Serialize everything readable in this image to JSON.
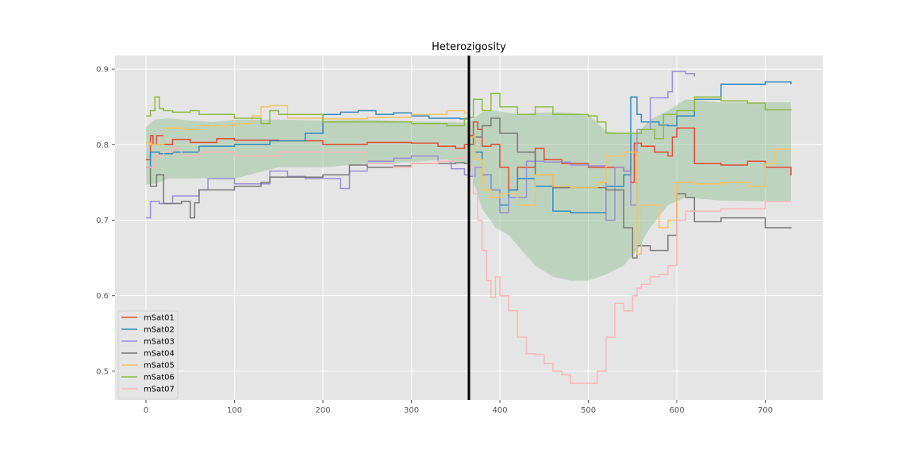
{
  "chart_data": {
    "type": "line",
    "title": "Heterozigosity",
    "xlabel": "",
    "ylabel": "",
    "xlim": [
      -35,
      765
    ],
    "ylim": [
      0.462,
      0.918
    ],
    "xticks": [
      0,
      100,
      200,
      300,
      400,
      500,
      600,
      700
    ],
    "yticks": [
      0.5,
      0.6,
      0.7,
      0.8,
      0.9
    ],
    "grid": true,
    "legend_position": "lower-left",
    "vline": {
      "x": 365,
      "color": "#000000"
    },
    "band": {
      "color": "#8fbc8f",
      "x": [
        0,
        10,
        25,
        50,
        75,
        100,
        150,
        200,
        250,
        300,
        340,
        364,
        380,
        395,
        410,
        425,
        440,
        460,
        480,
        500,
        520,
        540,
        555,
        570,
        590,
        610,
        650,
        700,
        729
      ],
      "upper": [
        0.823,
        0.833,
        0.835,
        0.832,
        0.83,
        0.833,
        0.833,
        0.832,
        0.833,
        0.831,
        0.83,
        0.829,
        0.843,
        0.845,
        0.842,
        0.84,
        0.842,
        0.843,
        0.842,
        0.84,
        0.818,
        0.815,
        0.815,
        0.833,
        0.845,
        0.86,
        0.856,
        0.856,
        0.856
      ],
      "lower": [
        0.747,
        0.748,
        0.755,
        0.755,
        0.756,
        0.755,
        0.77,
        0.77,
        0.775,
        0.777,
        0.78,
        0.775,
        0.715,
        0.69,
        0.68,
        0.66,
        0.64,
        0.625,
        0.62,
        0.62,
        0.628,
        0.64,
        0.66,
        0.69,
        0.72,
        0.73,
        0.726,
        0.725,
        0.725
      ]
    },
    "series": [
      {
        "name": "mSat01",
        "color": "#e24a33",
        "x": [
          0,
          5,
          8,
          12,
          20,
          30,
          50,
          80,
          100,
          150,
          200,
          250,
          300,
          330,
          350,
          360,
          365,
          370,
          375,
          380,
          390,
          400,
          410,
          420,
          440,
          450,
          470,
          500,
          520,
          540,
          548,
          552,
          560,
          575,
          590,
          595,
          600,
          610,
          620,
          650,
          680,
          700,
          729
        ],
        "values": [
          0.78,
          0.812,
          0.8,
          0.812,
          0.8,
          0.807,
          0.803,
          0.808,
          0.806,
          0.805,
          0.8,
          0.803,
          0.802,
          0.798,
          0.795,
          0.8,
          0.812,
          0.83,
          0.82,
          0.798,
          0.8,
          0.77,
          0.74,
          0.77,
          0.795,
          0.78,
          0.775,
          0.77,
          0.77,
          0.765,
          0.75,
          0.802,
          0.798,
          0.79,
          0.785,
          0.81,
          0.822,
          0.822,
          0.775,
          0.773,
          0.778,
          0.77,
          0.759
        ]
      },
      {
        "name": "mSat02",
        "color": "#348abd",
        "x": [
          0,
          5,
          15,
          30,
          60,
          100,
          140,
          180,
          200,
          220,
          240,
          260,
          280,
          300,
          320,
          340,
          355,
          365,
          372,
          380,
          390,
          400,
          410,
          420,
          440,
          460,
          480,
          500,
          520,
          540,
          548,
          555,
          560,
          580,
          590,
          600,
          620,
          650,
          700,
          729
        ],
        "values": [
          0.77,
          0.79,
          0.788,
          0.79,
          0.798,
          0.8,
          0.805,
          0.815,
          0.84,
          0.843,
          0.845,
          0.84,
          0.842,
          0.838,
          0.835,
          0.835,
          0.834,
          0.81,
          0.79,
          0.76,
          0.74,
          0.72,
          0.74,
          0.755,
          0.745,
          0.712,
          0.71,
          0.71,
          0.745,
          0.76,
          0.863,
          0.84,
          0.83,
          0.826,
          0.825,
          0.838,
          0.86,
          0.88,
          0.883,
          0.88
        ]
      },
      {
        "name": "mSat03",
        "color": "#988ed5",
        "x": [
          0,
          5,
          15,
          30,
          60,
          70,
          100,
          140,
          160,
          180,
          220,
          230,
          250,
          280,
          300,
          330,
          345,
          360,
          365,
          372,
          380,
          390,
          400,
          410,
          430,
          450,
          480,
          500,
          520,
          530,
          540,
          548,
          555,
          570,
          580,
          590,
          595,
          610,
          620
        ],
        "values": [
          0.703,
          0.725,
          0.722,
          0.732,
          0.74,
          0.755,
          0.748,
          0.765,
          0.758,
          0.755,
          0.742,
          0.765,
          0.778,
          0.782,
          0.785,
          0.778,
          0.768,
          0.76,
          0.758,
          0.77,
          0.76,
          0.74,
          0.71,
          0.73,
          0.778,
          0.777,
          0.773,
          0.772,
          0.7,
          0.77,
          0.765,
          0.72,
          0.82,
          0.862,
          0.862,
          0.87,
          0.897,
          0.894,
          0.89
        ]
      },
      {
        "name": "mSat04",
        "color": "#777777",
        "x": [
          0,
          5,
          12,
          20,
          40,
          50,
          55,
          60,
          100,
          130,
          140,
          150,
          200,
          230,
          250,
          280,
          300,
          330,
          350,
          360,
          365,
          370,
          380,
          390,
          400,
          420,
          440,
          460,
          480,
          500,
          520,
          540,
          550,
          555,
          570,
          590,
          600,
          610,
          620,
          650,
          700,
          729
        ],
        "values": [
          0.77,
          0.745,
          0.76,
          0.722,
          0.725,
          0.703,
          0.723,
          0.74,
          0.745,
          0.75,
          0.757,
          0.757,
          0.76,
          0.773,
          0.77,
          0.772,
          0.775,
          0.775,
          0.776,
          0.775,
          0.8,
          0.81,
          0.825,
          0.835,
          0.815,
          0.79,
          0.76,
          0.743,
          0.743,
          0.743,
          0.74,
          0.69,
          0.65,
          0.666,
          0.66,
          0.68,
          0.735,
          0.73,
          0.698,
          0.703,
          0.69,
          0.689
        ]
      },
      {
        "name": "mSat05",
        "color": "#fbc15e",
        "x": [
          0,
          5,
          20,
          40,
          60,
          100,
          120,
          130,
          140,
          160,
          200,
          250,
          300,
          340,
          360,
          365,
          372,
          380,
          390,
          400,
          420,
          440,
          460,
          480,
          500,
          510,
          520,
          540,
          555,
          560,
          580,
          590,
          600,
          620,
          650,
          680,
          700,
          710,
          729
        ],
        "values": [
          0.802,
          0.8,
          0.822,
          0.82,
          0.825,
          0.828,
          0.838,
          0.85,
          0.852,
          0.835,
          0.834,
          0.836,
          0.84,
          0.845,
          0.842,
          0.81,
          0.78,
          0.74,
          0.73,
          0.735,
          0.72,
          0.76,
          0.745,
          0.743,
          0.743,
          0.75,
          0.785,
          0.79,
          0.655,
          0.72,
          0.69,
          0.7,
          0.75,
          0.748,
          0.75,
          0.745,
          0.775,
          0.794,
          0.794
        ]
      },
      {
        "name": "mSat06",
        "color": "#8eba42",
        "x": [
          0,
          5,
          10,
          15,
          20,
          30,
          50,
          60,
          100,
          130,
          140,
          150,
          200,
          250,
          300,
          340,
          360,
          365,
          370,
          380,
          390,
          400,
          420,
          440,
          460,
          480,
          500,
          510,
          520,
          540,
          560,
          575,
          585,
          590,
          600,
          620,
          650,
          680,
          700,
          729
        ],
        "values": [
          0.838,
          0.845,
          0.863,
          0.848,
          0.845,
          0.843,
          0.845,
          0.84,
          0.835,
          0.828,
          0.845,
          0.84,
          0.83,
          0.83,
          0.828,
          0.825,
          0.835,
          0.836,
          0.86,
          0.845,
          0.868,
          0.85,
          0.84,
          0.85,
          0.84,
          0.84,
          0.838,
          0.83,
          0.815,
          0.815,
          0.82,
          0.808,
          0.84,
          0.84,
          0.845,
          0.863,
          0.858,
          0.855,
          0.846,
          0.845
        ]
      },
      {
        "name": "mSat07",
        "color": "#ffb5b8",
        "x": [
          0,
          10,
          20,
          30,
          40,
          60,
          80,
          100,
          150,
          200,
          250,
          280,
          300,
          330,
          350,
          360,
          365,
          370,
          375,
          380,
          385,
          390,
          395,
          400,
          410,
          420,
          430,
          440,
          450,
          460,
          470,
          480,
          490,
          500,
          510,
          520,
          530,
          540,
          550,
          555,
          560,
          570,
          580,
          590,
          600,
          610,
          620,
          650,
          700,
          729
        ],
        "values": [
          0.77,
          0.785,
          0.79,
          0.795,
          0.785,
          0.79,
          0.79,
          0.785,
          0.79,
          0.79,
          0.775,
          0.77,
          0.775,
          0.778,
          0.782,
          0.785,
          0.77,
          0.735,
          0.7,
          0.66,
          0.62,
          0.598,
          0.625,
          0.6,
          0.58,
          0.545,
          0.523,
          0.522,
          0.51,
          0.5,
          0.495,
          0.484,
          0.484,
          0.484,
          0.5,
          0.545,
          0.59,
          0.58,
          0.6,
          0.61,
          0.615,
          0.625,
          0.628,
          0.64,
          0.7,
          0.712,
          0.712,
          0.715,
          0.725,
          0.724
        ]
      }
    ]
  }
}
